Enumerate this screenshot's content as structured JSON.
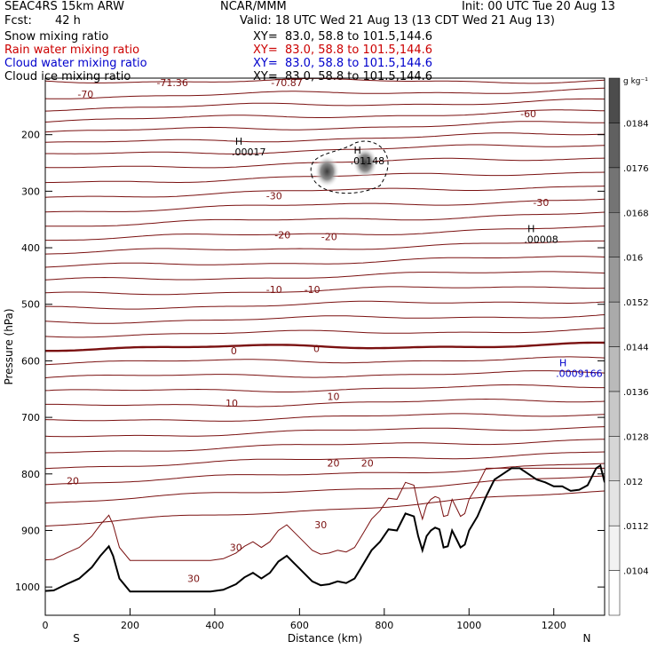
{
  "header": {
    "model": "SEAC4RS 15km ARW",
    "org": "NCAR/MMM",
    "init": "Init: 00 UTC Tue 20 Aug 13",
    "fcst_label": "Fcst:",
    "fcst_value": "42 h",
    "valid": "Valid: 18 UTC Wed 21 Aug 13 (13 CDT Wed 21 Aug 13)"
  },
  "fields": [
    {
      "name": "Snow mixing ratio",
      "xy": "XY=  83.0, 58.8 to 101.5,144.6",
      "color": "#000000"
    },
    {
      "name": "Rain water mixing ratio",
      "xy": "XY=  83.0, 58.8 to 101.5,144.6",
      "color": "#cc0000"
    },
    {
      "name": "Cloud water mixing ratio",
      "xy": "XY=  83.0, 58.8 to 101.5,144.6",
      "color": "#0000cc"
    },
    {
      "name": "Cloud ice mixing ratio",
      "xy": "XY=  83.0, 58.8 to 101.5,144.6",
      "color": "#000000"
    }
  ],
  "chart_data": {
    "type": "cross-section",
    "xlabel": "Distance (km)",
    "ylabel": "Pressure (hPa)",
    "xlim": [
      0,
      1320
    ],
    "ylim": [
      1050,
      100
    ],
    "x_ticks": [
      0,
      200,
      400,
      600,
      800,
      1000,
      1200
    ],
    "y_ticks": [
      200,
      300,
      400,
      500,
      600,
      700,
      800,
      900,
      1000
    ],
    "x_end_labels": {
      "left": "S",
      "right": "N"
    },
    "colorbar": {
      "unit": "g kg⁻¹",
      "labels": [
        ".0104",
        ".0112",
        ".012",
        ".0128",
        ".0136",
        ".0144",
        ".0152",
        ".016",
        ".0168",
        ".0176",
        ".0184"
      ],
      "colors": [
        "#ffffff",
        "#f2f2f2",
        "#e4e4e4",
        "#d6d6d6",
        "#c8c8c8",
        "#bababa",
        "#aaaaaa",
        "#999999",
        "#878787",
        "#747474",
        "#606060",
        "#4c4c4c"
      ]
    },
    "temperature_labels": [
      {
        "text": "-71.36",
        "x": 300,
        "p": 108
      },
      {
        "text": "-70.87",
        "x": 570,
        "p": 108
      },
      {
        "text": "-70",
        "x": 95,
        "p": 128
      },
      {
        "text": "-60",
        "x": 1140,
        "p": 163
      },
      {
        "text": "-30",
        "x": 540,
        "p": 308
      },
      {
        "text": "-30",
        "x": 1170,
        "p": 320
      },
      {
        "text": "-20",
        "x": 560,
        "p": 377
      },
      {
        "text": "-20",
        "x": 670,
        "p": 380
      },
      {
        "text": "-10",
        "x": 540,
        "p": 474
      },
      {
        "text": "-10",
        "x": 630,
        "p": 474
      },
      {
        "text": "0",
        "x": 445,
        "p": 582
      },
      {
        "text": "0",
        "x": 640,
        "p": 578
      },
      {
        "text": "10",
        "x": 440,
        "p": 675
      },
      {
        "text": "10",
        "x": 680,
        "p": 663
      },
      {
        "text": "20",
        "x": 65,
        "p": 812
      },
      {
        "text": "20",
        "x": 680,
        "p": 781
      },
      {
        "text": "20",
        "x": 760,
        "p": 781
      },
      {
        "text": "30",
        "x": 650,
        "p": 890
      },
      {
        "text": "30",
        "x": 450,
        "p": 930
      },
      {
        "text": "30",
        "x": 350,
        "p": 985
      }
    ],
    "extrema_labels": [
      {
        "mark": "H",
        "value": ".00017",
        "x": 440,
        "p": 230,
        "color": "#000000"
      },
      {
        "mark": "H",
        "value": ".01148",
        "x": 720,
        "p": 246,
        "color": "#000000"
      },
      {
        "mark": "H",
        "value": ".00008",
        "x": 1130,
        "p": 385,
        "color": "#000000"
      },
      {
        "mark": "H",
        "value": ".0009166",
        "x": 1205,
        "p": 622,
        "color": "#0000cc"
      }
    ],
    "cloud_ice_blobs": [
      {
        "x": 665,
        "p": 265,
        "value": 0.0176
      },
      {
        "x": 755,
        "p": 250,
        "value": 0.0184
      }
    ],
    "terrain": {
      "distance": [
        0,
        20,
        50,
        80,
        110,
        130,
        150,
        160,
        175,
        200,
        240,
        300,
        350,
        390,
        420,
        450,
        470,
        490,
        510,
        530,
        550,
        570,
        590,
        610,
        630,
        650,
        670,
        690,
        710,
        730,
        750,
        770,
        790,
        810,
        830,
        850,
        870,
        880,
        890,
        900,
        910,
        920,
        930,
        940,
        950,
        960,
        970,
        980,
        990,
        1000,
        1020,
        1040,
        1060,
        1080,
        1100,
        1120,
        1140,
        1160,
        1180,
        1200,
        1220,
        1240,
        1260,
        1280,
        1300,
        1310,
        1320
      ],
      "pressure": [
        1007,
        1006,
        995,
        985,
        965,
        945,
        928,
        945,
        985,
        1008,
        1008,
        1008,
        1008,
        1008,
        1005,
        995,
        983,
        975,
        985,
        975,
        955,
        945,
        960,
        975,
        990,
        997,
        995,
        990,
        993,
        985,
        960,
        935,
        920,
        898,
        900,
        870,
        875,
        910,
        935,
        910,
        900,
        895,
        898,
        930,
        928,
        900,
        915,
        930,
        925,
        900,
        875,
        840,
        810,
        800,
        790,
        790,
        800,
        810,
        815,
        822,
        822,
        830,
        828,
        820,
        790,
        785,
        815
      ]
    }
  }
}
